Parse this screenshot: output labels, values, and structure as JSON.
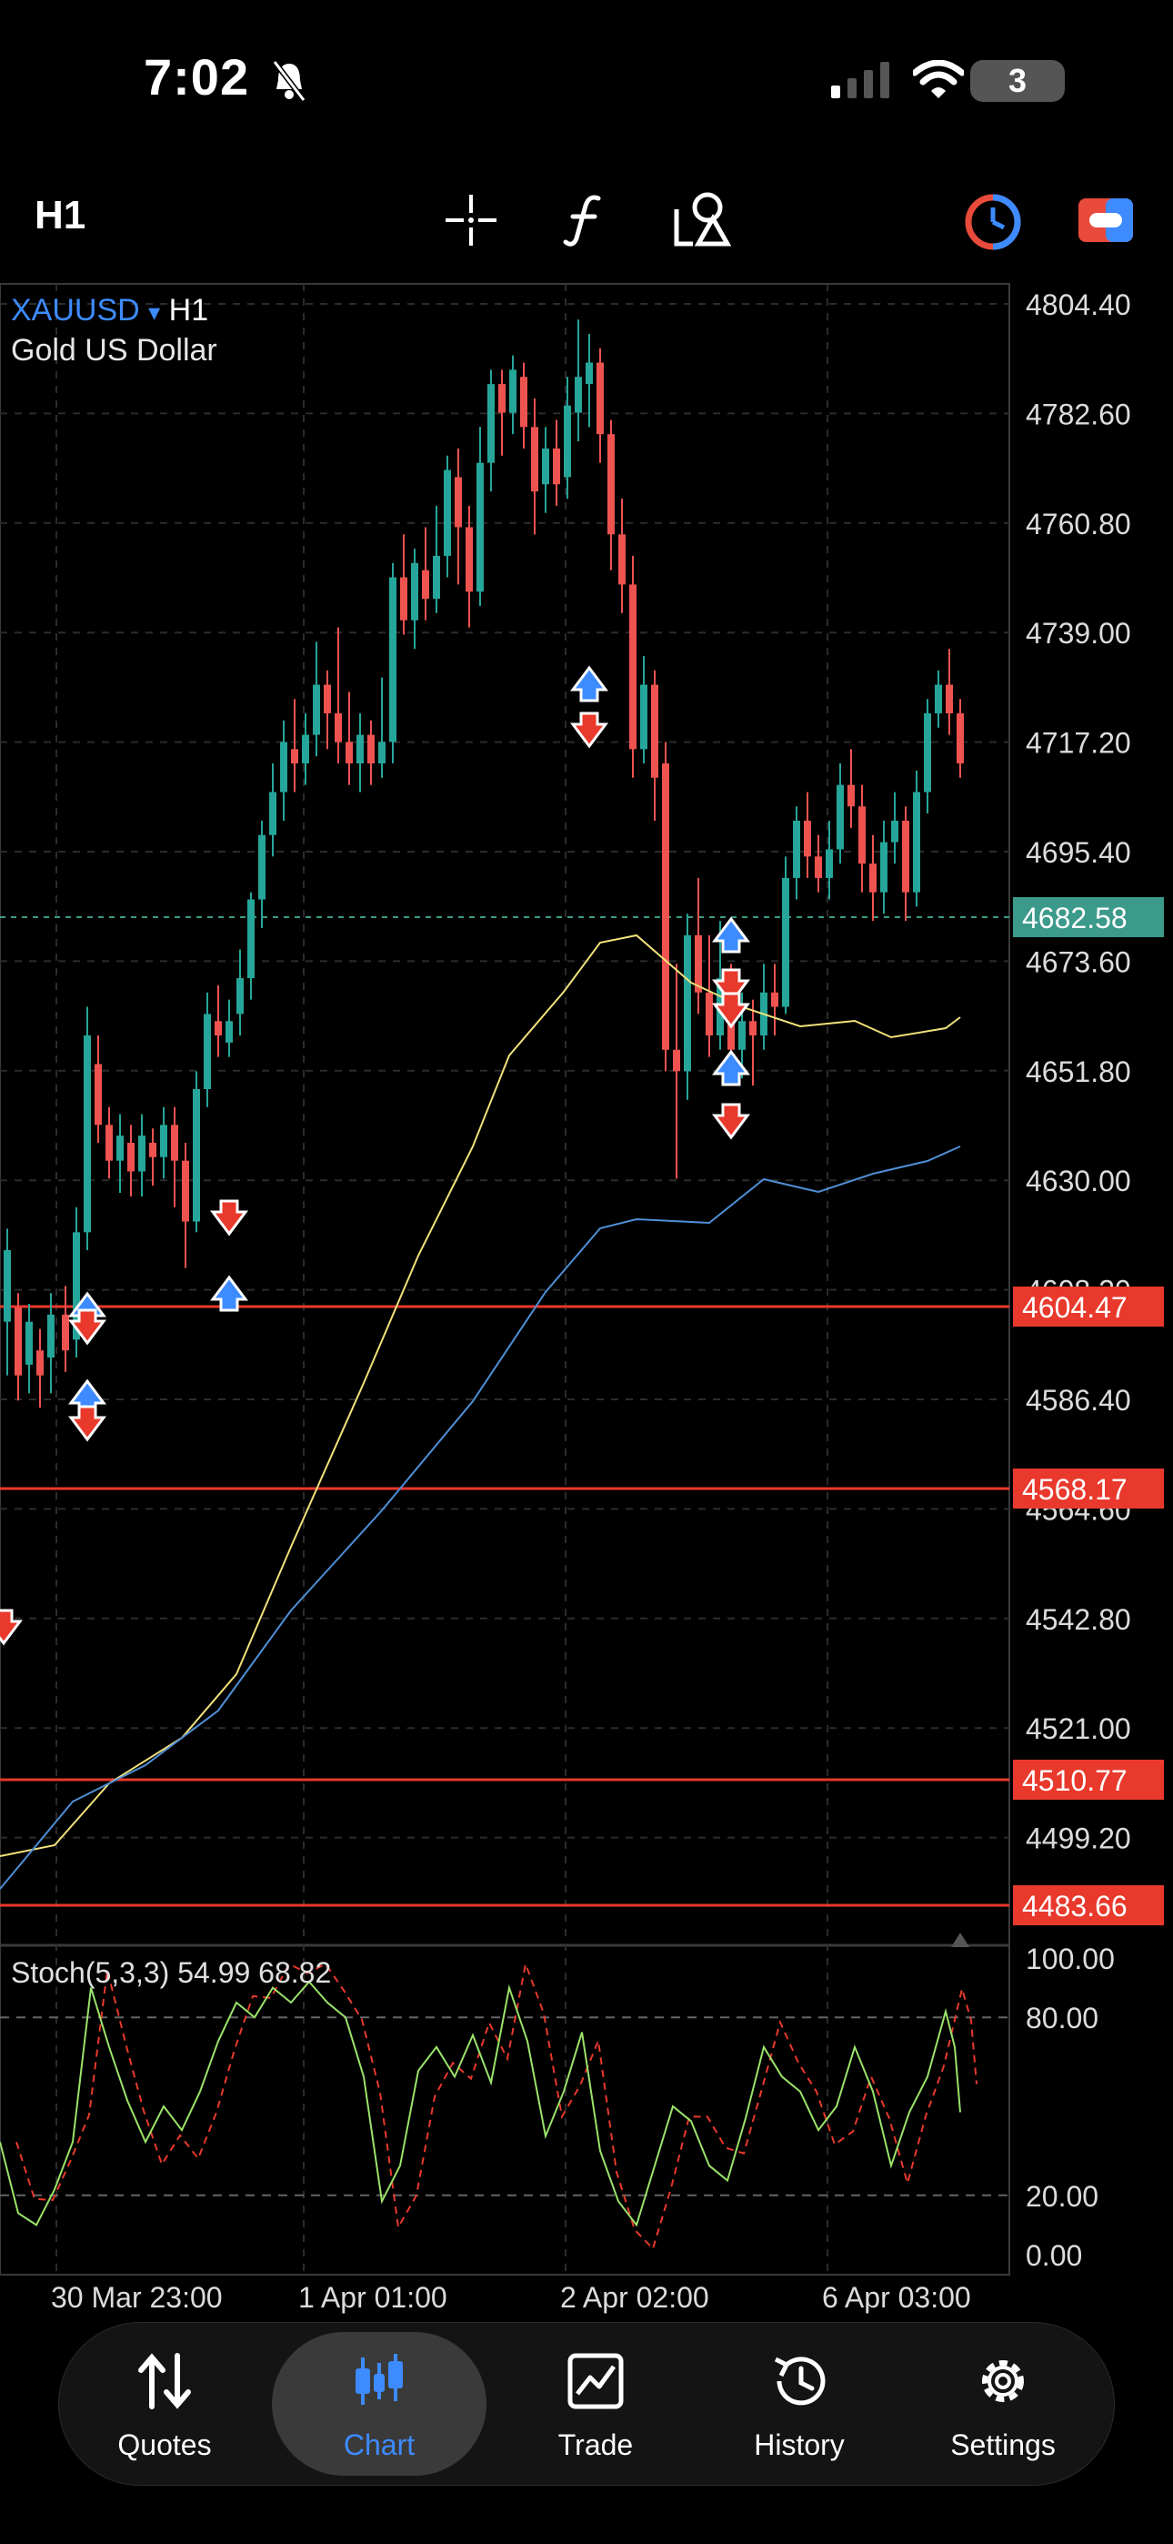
{
  "status_bar": {
    "time": "7:02",
    "battery": "3",
    "icons": [
      "bell-slash-icon",
      "cellular-icon",
      "wifi-icon"
    ]
  },
  "toolbar": {
    "timeframe": "H1",
    "icons": [
      "crosshair-icon",
      "function-icon",
      "objects-icon",
      "timer-icon",
      "one-click-trading-icon"
    ],
    "accent": "#3d8bff"
  },
  "chart": {
    "symbol": "XAUUSD",
    "dropdown": "▾",
    "timeframe": "H1",
    "description": "Gold US Dollar",
    "price_labels": [
      "4804.40",
      "4782.60",
      "4760.80",
      "4739.00",
      "4717.20",
      "4695.40",
      "4673.60",
      "4651.80",
      "4630.00",
      "4608.20",
      "4586.40",
      "4564.60",
      "4542.80",
      "4521.00",
      "4499.20"
    ],
    "current_price": "4682.58",
    "level_lines": [
      "4604.47",
      "4568.17",
      "4510.77",
      "4483.66"
    ],
    "time_labels": [
      "30 Mar 23:00",
      "1 Apr 01:00",
      "2 Apr 02:00",
      "6 Apr 03:00"
    ],
    "stoch_label": "Stoch(5,3,3) 54.99 68.82",
    "stoch_levels": [
      "100.00",
      "80.00",
      "20.00",
      "0.00"
    ],
    "colors": {
      "bull": "#26a69a",
      "bear": "#ef5350",
      "level": "#e8392c",
      "ma_fast": "#f2e27a",
      "ma_slow": "#4f8fd6",
      "current": "#3c9a8b"
    }
  },
  "nav": [
    {
      "label": "Quotes",
      "icon": "quotes-arrows-icon"
    },
    {
      "label": "Chart",
      "icon": "chart-candles-icon",
      "active": true
    },
    {
      "label": "Trade",
      "icon": "trade-chart-icon"
    },
    {
      "label": "History",
      "icon": "history-clock-icon"
    },
    {
      "label": "Settings",
      "icon": "settings-gear-icon"
    }
  ]
}
